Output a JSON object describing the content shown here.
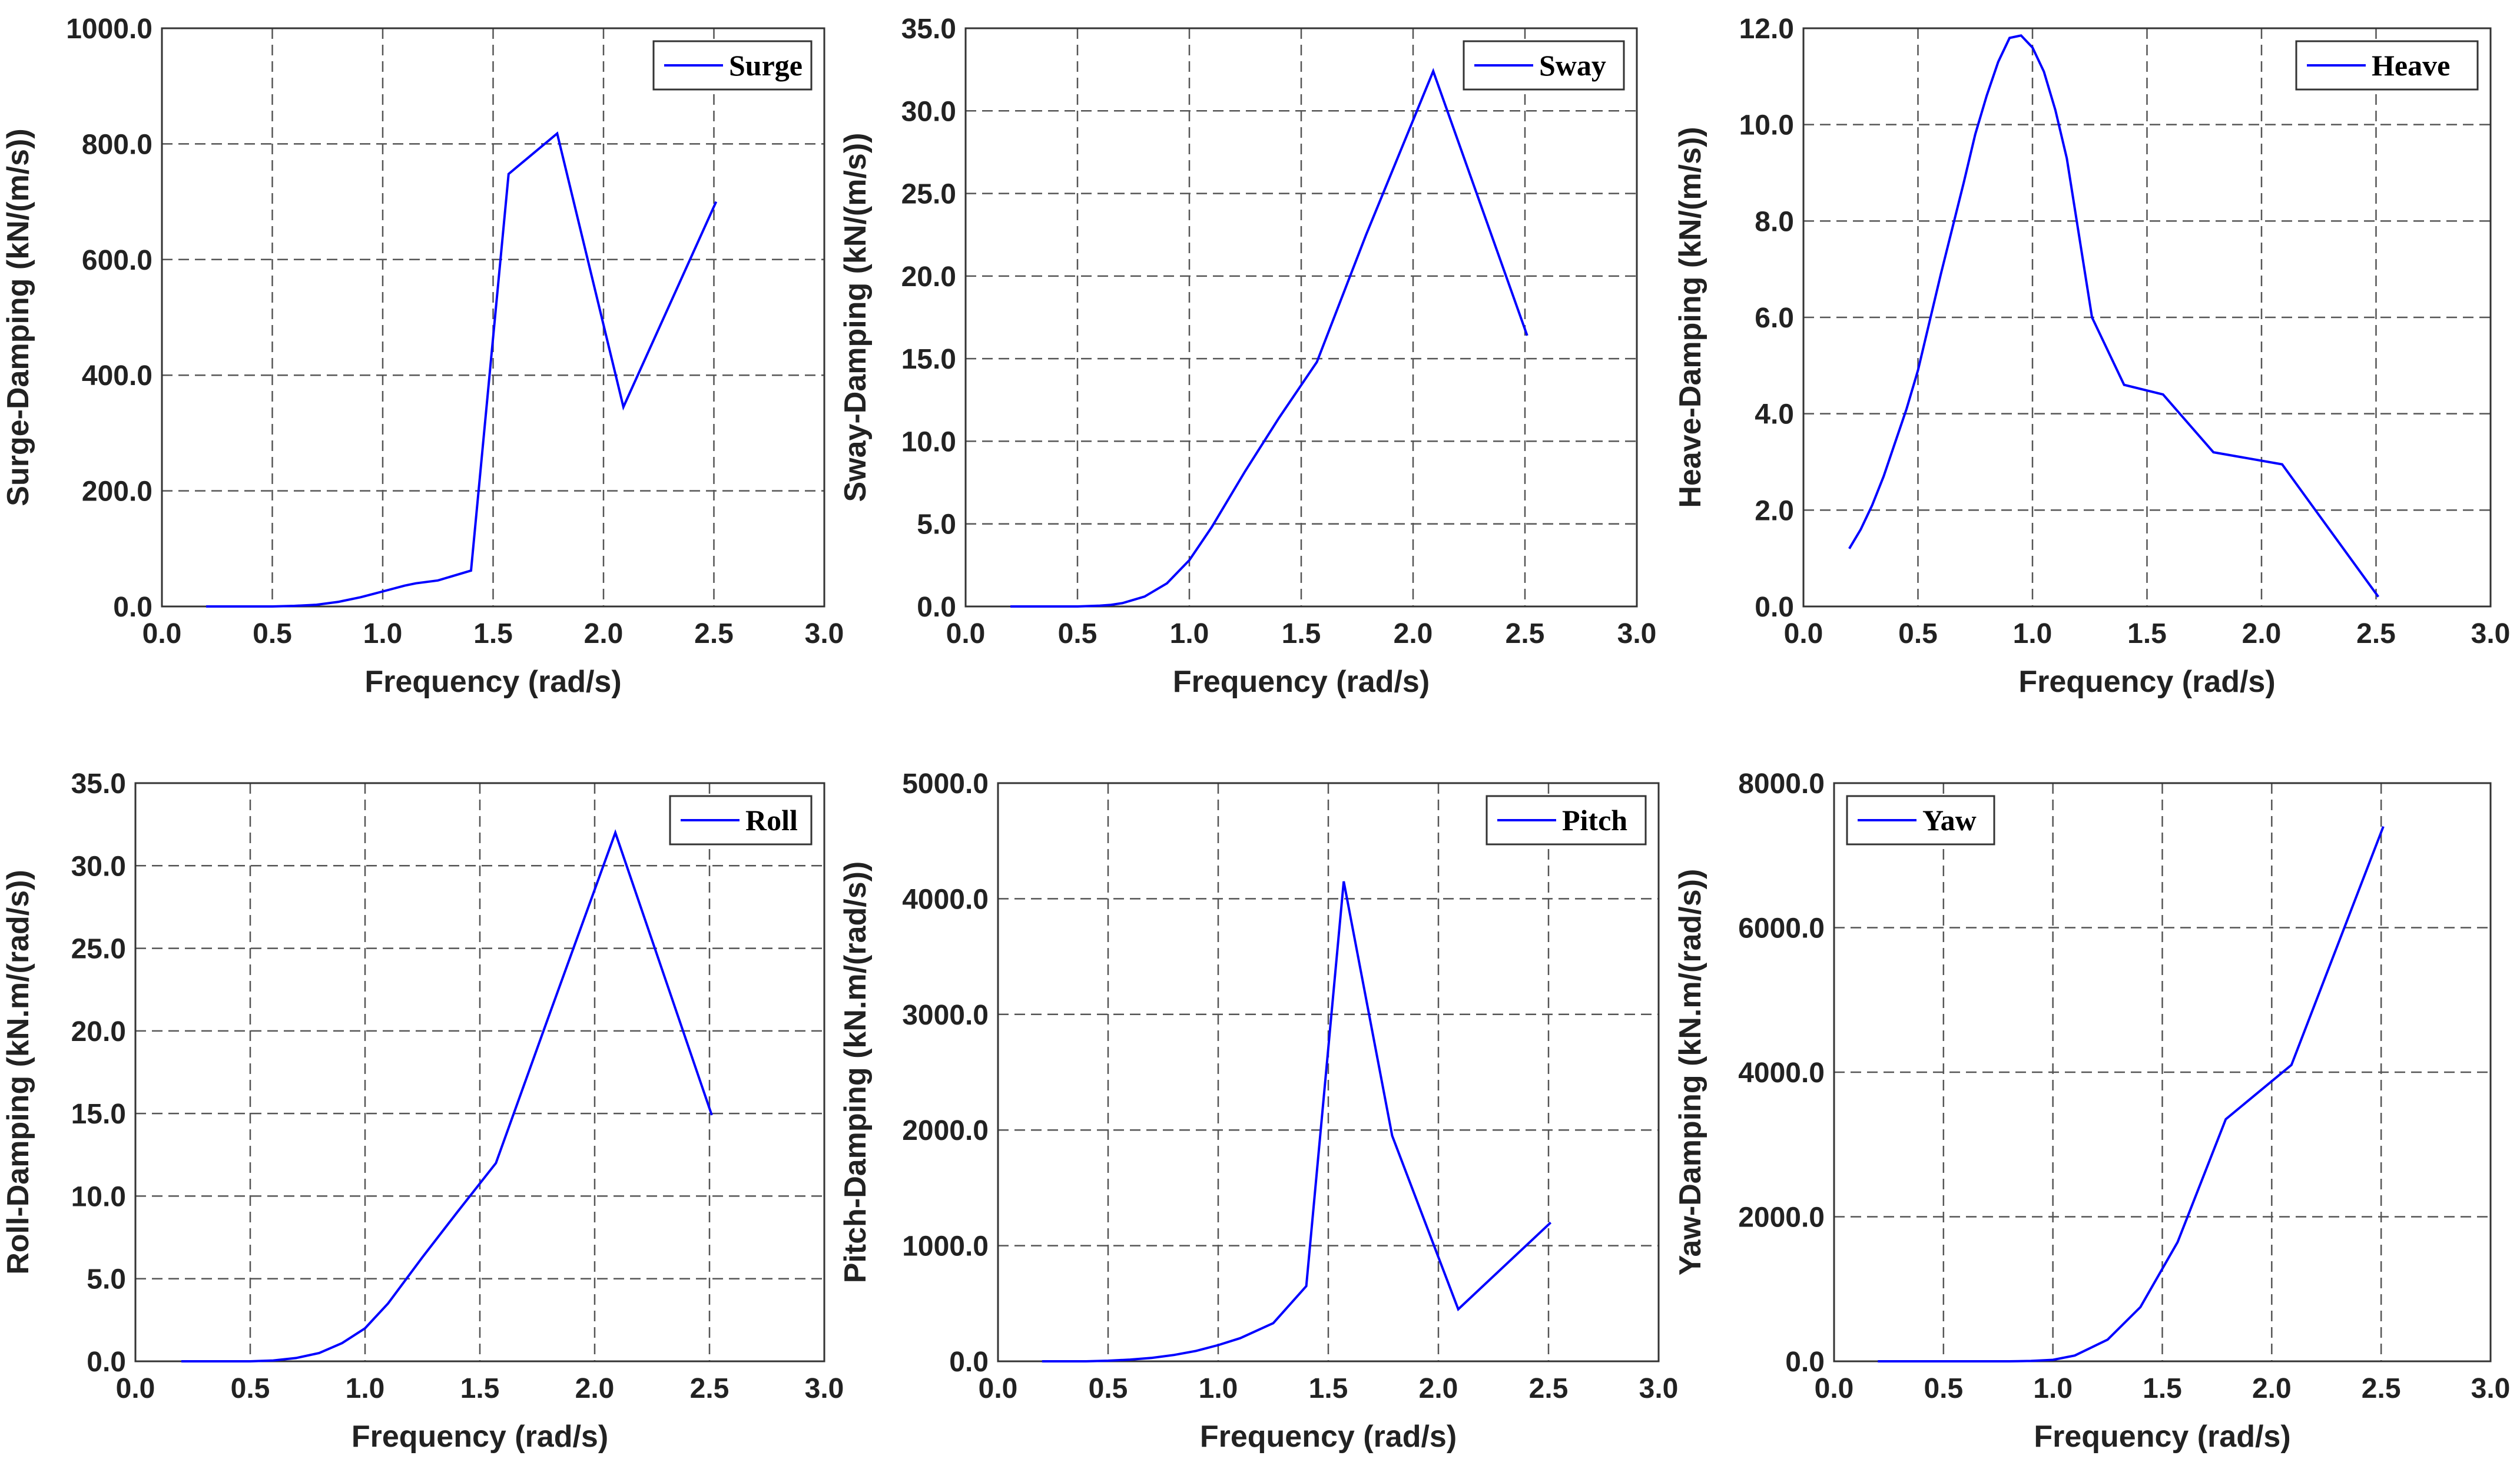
{
  "chart_data": [
    {
      "type": "line",
      "xlabel": "Frequency (rad/s)",
      "ylabel": "Surge-Damping (kN/(m/s))",
      "xlim": [
        0,
        3
      ],
      "ylim": [
        0,
        1000
      ],
      "xticks": [
        "0.0",
        "0.5",
        "1.0",
        "1.5",
        "2.0",
        "2.5",
        "3.0"
      ],
      "yticks": [
        "0.0",
        "200.0",
        "400.0",
        "600.0",
        "800.0",
        "1000.0"
      ],
      "grid": true,
      "legend_position": "top-right",
      "color": "#0000ff",
      "series": [
        {
          "name": "Surge",
          "x": [
            0.2,
            0.3,
            0.4,
            0.5,
            0.6,
            0.7,
            0.8,
            0.9,
            1.0,
            1.1,
            1.15,
            1.25,
            1.4,
            1.57,
            1.79,
            2.09,
            2.51
          ],
          "y": [
            0,
            0,
            0,
            0,
            1,
            3,
            8,
            16,
            26,
            36,
            40,
            45,
            62,
            748,
            818,
            345,
            700
          ]
        }
      ]
    },
    {
      "type": "line",
      "xlabel": "Frequency (rad/s)",
      "ylabel": "Sway-Damping (kN/(m/s))",
      "xlim": [
        0,
        3
      ],
      "ylim": [
        0,
        35
      ],
      "xticks": [
        "0.0",
        "0.5",
        "1.0",
        "1.5",
        "2.0",
        "2.5",
        "3.0"
      ],
      "yticks": [
        "0.0",
        "5.0",
        "10.0",
        "15.0",
        "20.0",
        "25.0",
        "30.0",
        "35.0"
      ],
      "grid": true,
      "legend_position": "top-right",
      "color": "#0000ff",
      "series": [
        {
          "name": "Sway",
          "x": [
            0.2,
            0.3,
            0.4,
            0.5,
            0.6,
            0.65,
            0.7,
            0.8,
            0.9,
            1.0,
            1.1,
            1.25,
            1.4,
            1.57,
            1.79,
            2.09,
            2.51
          ],
          "y": [
            0,
            0,
            0,
            0,
            0.05,
            0.1,
            0.2,
            0.6,
            1.4,
            2.8,
            4.8,
            8.2,
            11.4,
            14.8,
            22.5,
            32.4,
            16.4
          ]
        }
      ]
    },
    {
      "type": "line",
      "xlabel": "Frequency (rad/s)",
      "ylabel": "Heave-Damping (kN/(m/s))",
      "xlim": [
        0,
        3
      ],
      "ylim": [
        0,
        12
      ],
      "xticks": [
        "0.0",
        "0.5",
        "1.0",
        "1.5",
        "2.0",
        "2.5",
        "3.0"
      ],
      "yticks": [
        "0.0",
        "2.0",
        "4.0",
        "6.0",
        "8.0",
        "10.0",
        "12.0"
      ],
      "grid": true,
      "legend_position": "top-right",
      "color": "#0000ff",
      "series": [
        {
          "name": "Heave",
          "x": [
            0.2,
            0.25,
            0.3,
            0.35,
            0.4,
            0.45,
            0.5,
            0.6,
            0.7,
            0.75,
            0.8,
            0.85,
            0.9,
            0.95,
            1.0,
            1.05,
            1.1,
            1.15,
            1.26,
            1.4,
            1.57,
            1.79,
            2.09,
            2.51
          ],
          "y": [
            1.2,
            1.6,
            2.1,
            2.7,
            3.4,
            4.1,
            4.9,
            6.9,
            8.8,
            9.8,
            10.6,
            11.3,
            11.8,
            11.85,
            11.6,
            11.1,
            10.3,
            9.3,
            6.0,
            4.6,
            4.4,
            3.2,
            2.95,
            0.2
          ]
        }
      ]
    },
    {
      "type": "line",
      "xlabel": "Frequency (rad/s)",
      "ylabel": "Roll-Damping (kN.m/(rad/s))",
      "xlim": [
        0,
        3
      ],
      "ylim": [
        0,
        35
      ],
      "xticks": [
        "0.0",
        "0.5",
        "1.0",
        "1.5",
        "2.0",
        "2.5",
        "3.0"
      ],
      "yticks": [
        "0.0",
        "5.0",
        "10.0",
        "15.0",
        "20.0",
        "25.0",
        "30.0",
        "35.0"
      ],
      "grid": true,
      "legend_position": "top-right",
      "color": "#0000ff",
      "series": [
        {
          "name": "Roll",
          "x": [
            0.2,
            0.3,
            0.4,
            0.5,
            0.6,
            0.7,
            0.8,
            0.9,
            1.0,
            1.1,
            1.25,
            1.4,
            1.57,
            1.79,
            2.09,
            2.51
          ],
          "y": [
            0,
            0,
            0,
            0,
            0.05,
            0.2,
            0.5,
            1.1,
            2.0,
            3.5,
            6.3,
            9.0,
            12.0,
            20.5,
            32.0,
            14.9
          ]
        }
      ]
    },
    {
      "type": "line",
      "xlabel": "Frequency (rad/s)",
      "ylabel": "Pitch-Damping (kN.m/(rad/s))",
      "xlim": [
        0,
        3
      ],
      "ylim": [
        0,
        5000
      ],
      "xticks": [
        "0.0",
        "0.5",
        "1.0",
        "1.5",
        "2.0",
        "2.5",
        "3.0"
      ],
      "yticks": [
        "0.0",
        "1000.0",
        "2000.0",
        "3000.0",
        "4000.0",
        "5000.0"
      ],
      "grid": true,
      "legend_position": "top-right",
      "color": "#0000ff",
      "series": [
        {
          "name": "Pitch",
          "x": [
            0.2,
            0.3,
            0.4,
            0.5,
            0.6,
            0.7,
            0.8,
            0.9,
            1.0,
            1.1,
            1.25,
            1.4,
            1.57,
            1.79,
            2.09,
            2.51
          ],
          "y": [
            0,
            0,
            0,
            5,
            15,
            30,
            55,
            90,
            140,
            200,
            330,
            650,
            4150,
            1950,
            450,
            1200
          ]
        }
      ]
    },
    {
      "type": "line",
      "xlabel": "Frequency (rad/s)",
      "ylabel": "Yaw-Damping (kN.m/(rad/s))",
      "xlim": [
        0,
        3
      ],
      "ylim": [
        0,
        8000
      ],
      "xticks": [
        "0.0",
        "0.5",
        "1.0",
        "1.5",
        "2.0",
        "2.5",
        "3.0"
      ],
      "yticks": [
        "0.0",
        "2000.0",
        "4000.0",
        "6000.0",
        "8000.0"
      ],
      "grid": true,
      "legend_position": "top-left",
      "color": "#0000ff",
      "series": [
        {
          "name": "Yaw",
          "x": [
            0.2,
            0.3,
            0.4,
            0.5,
            0.6,
            0.7,
            0.8,
            0.9,
            1.0,
            1.1,
            1.25,
            1.4,
            1.57,
            1.79,
            2.09,
            2.51
          ],
          "y": [
            0,
            0,
            0,
            0,
            0,
            0,
            0,
            5,
            20,
            80,
            300,
            750,
            1650,
            3350,
            4100,
            7400
          ]
        }
      ]
    }
  ]
}
